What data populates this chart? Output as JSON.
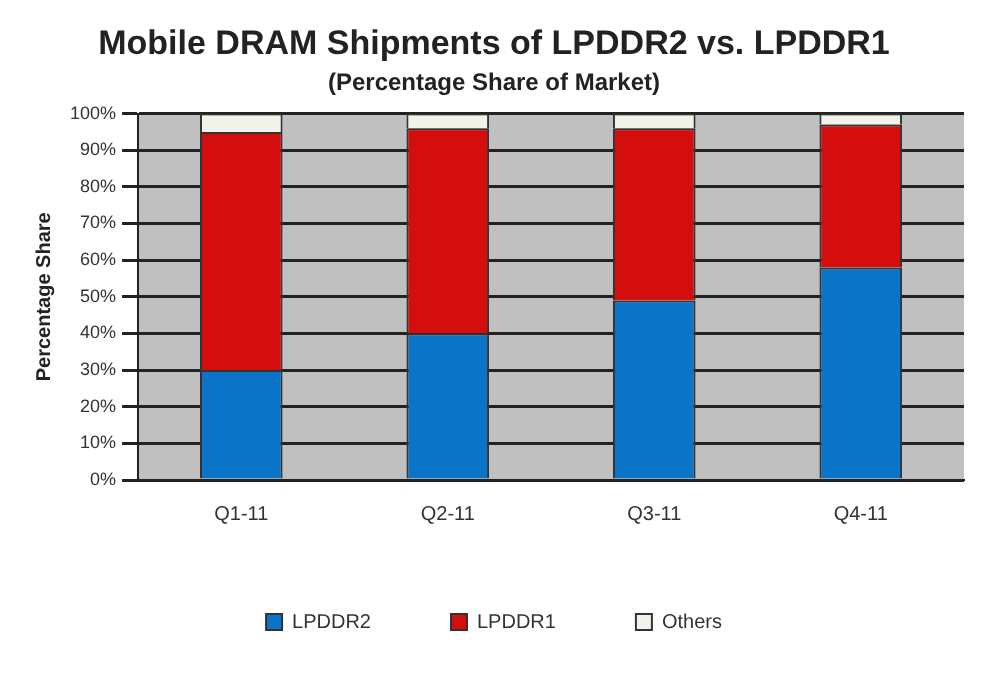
{
  "chart_data": {
    "type": "bar",
    "title": "Mobile DRAM Shipments of LPDDR2 vs. LPDDR1",
    "subtitle": "(Percentage Share of Market)",
    "ylabel": "Percentage Share",
    "categories": [
      "Q1-11",
      "Q2-11",
      "Q3-11",
      "Q4-11"
    ],
    "stacked": true,
    "series": [
      {
        "name": "LPDDR2",
        "color": "#0a74c8",
        "values": [
          30,
          40,
          49,
          58
        ]
      },
      {
        "name": "LPDDR1",
        "color": "#d40d0d",
        "values": [
          65,
          56,
          47,
          39
        ]
      },
      {
        "name": "Others",
        "color": "#f2f2ea",
        "values": [
          5,
          4,
          4,
          3
        ]
      }
    ],
    "ylim": [
      0,
      100
    ],
    "yticks": [
      {
        "value": 0,
        "label": "0%"
      },
      {
        "value": 10,
        "label": "10%"
      },
      {
        "value": 20,
        "label": "20%"
      },
      {
        "value": 30,
        "label": "30%"
      },
      {
        "value": 40,
        "label": "40%"
      },
      {
        "value": 50,
        "label": "50%"
      },
      {
        "value": 60,
        "label": "60%"
      },
      {
        "value": 70,
        "label": "70%"
      },
      {
        "value": 80,
        "label": "80%"
      },
      {
        "value": 90,
        "label": "90%"
      },
      {
        "value": 100,
        "label": "100%"
      }
    ],
    "grid": "y",
    "legend": "bottom"
  }
}
